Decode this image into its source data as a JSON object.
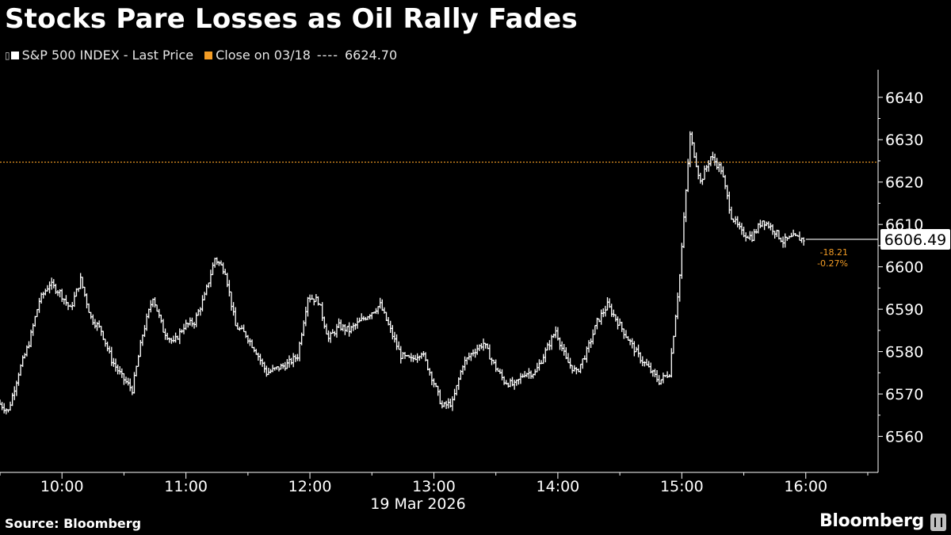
{
  "title": "Stocks Pare Losses as Oil Rally Fades",
  "legend": {
    "series_label": "S&P 500 INDEX - Last Price",
    "series_glyph": "▯",
    "reference_label": "Close on 03/18",
    "reference_dashes": "----",
    "reference_value": "6624.70"
  },
  "footer": {
    "source": "Source: Bloomberg",
    "brand": "Bloomberg"
  },
  "colors": {
    "background": "#000000",
    "series": "#ffffff",
    "reference": "#f39c25",
    "axis": "#ffffff"
  },
  "chart_data": {
    "type": "line",
    "style": "bar_ohlc",
    "date_label": "19 Mar 2026",
    "x_ticks": [
      "10:00",
      "11:00",
      "12:00",
      "13:00",
      "14:00",
      "15:00",
      "16:00"
    ],
    "x_range": [
      "09:30",
      "16:35"
    ],
    "y_ticks": [
      6560,
      6570,
      6580,
      6590,
      6600,
      6610,
      6620,
      6630,
      6640
    ],
    "y_range": [
      6551.5,
      6646.5
    ],
    "y_axis_side": "right",
    "reference_line": {
      "label": "Close on 03/18",
      "value": 6624.7
    },
    "last_value": {
      "value": "6606.49",
      "change": "-18.21",
      "change_pct": "-0.27%"
    },
    "series": [
      {
        "name": "S&P 500 INDEX - Last Price",
        "x": [
          "09:30",
          "09:35",
          "09:40",
          "09:45",
          "09:50",
          "09:55",
          "10:00",
          "10:05",
          "10:10",
          "10:15",
          "10:20",
          "10:25",
          "10:30",
          "10:35",
          "10:40",
          "10:45",
          "10:50",
          "10:55",
          "11:00",
          "11:05",
          "11:10",
          "11:15",
          "11:20",
          "11:25",
          "11:30",
          "11:35",
          "11:40",
          "11:45",
          "11:50",
          "11:55",
          "12:00",
          "12:05",
          "12:10",
          "12:15",
          "12:20",
          "12:25",
          "12:30",
          "12:35",
          "12:40",
          "12:45",
          "12:50",
          "12:55",
          "13:00",
          "13:05",
          "13:10",
          "13:15",
          "13:20",
          "13:25",
          "13:30",
          "13:35",
          "13:40",
          "13:45",
          "13:50",
          "13:55",
          "14:00",
          "14:05",
          "14:10",
          "14:15",
          "14:20",
          "14:25",
          "14:30",
          "14:35",
          "14:40",
          "14:45",
          "14:50",
          "14:55",
          "15:00",
          "15:05",
          "15:10",
          "15:15",
          "15:20",
          "15:25",
          "15:30",
          "15:35",
          "15:40",
          "15:45",
          "15:50",
          "15:55",
          "16:00"
        ],
        "values": [
          6568,
          6566,
          6575,
          6582,
          6592,
          6596,
          6594,
          6590,
          6597,
          6588,
          6585,
          6578,
          6574,
          6571,
          6584,
          6593,
          6585,
          6582,
          6586,
          6587,
          6593,
          6602,
          6599,
          6586,
          6584,
          6580,
          6575,
          6576,
          6577,
          6579,
          6593,
          6592,
          6583,
          6586,
          6585,
          6587,
          6589,
          6591,
          6585,
          6579,
          6578,
          6580,
          6574,
          6567,
          6568,
          6577,
          6580,
          6582,
          6577,
          6573,
          6572,
          6575,
          6575,
          6580,
          6585,
          6578,
          6575,
          6580,
          6587,
          6591,
          6587,
          6583,
          6579,
          6576,
          6573,
          6575,
          6598,
          6631,
          6620,
          6626,
          6623,
          6612,
          6608,
          6607,
          6611,
          6609,
          6606,
          6607,
          6606.49
        ]
      }
    ]
  }
}
